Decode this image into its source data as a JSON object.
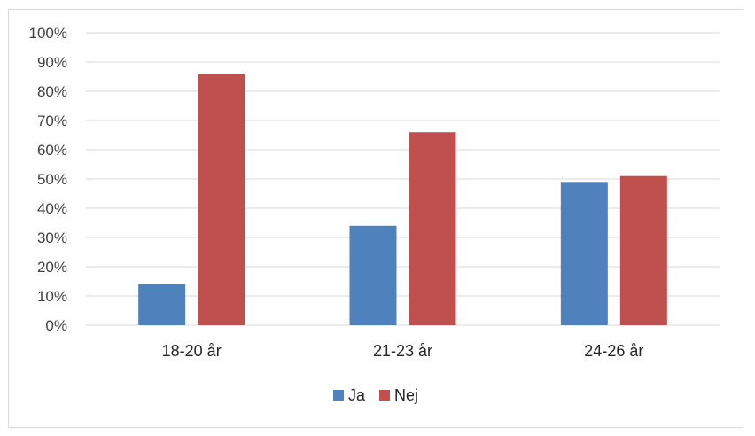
{
  "chart_data": {
    "type": "bar",
    "categories": [
      "18-20 år",
      "21-23 år",
      "24-26 år"
    ],
    "series": [
      {
        "name": "Ja",
        "values": [
          14,
          34,
          49
        ],
        "color": "#4f81bd"
      },
      {
        "name": "Nej",
        "values": [
          86,
          66,
          51
        ],
        "color": "#c0504d"
      }
    ],
    "yticks": [
      "0%",
      "10%",
      "20%",
      "30%",
      "40%",
      "50%",
      "60%",
      "70%",
      "80%",
      "90%",
      "100%"
    ],
    "ylim": [
      0,
      100
    ],
    "grid": true,
    "legend": "bottom",
    "gridline_color": "#d9d9d9"
  }
}
